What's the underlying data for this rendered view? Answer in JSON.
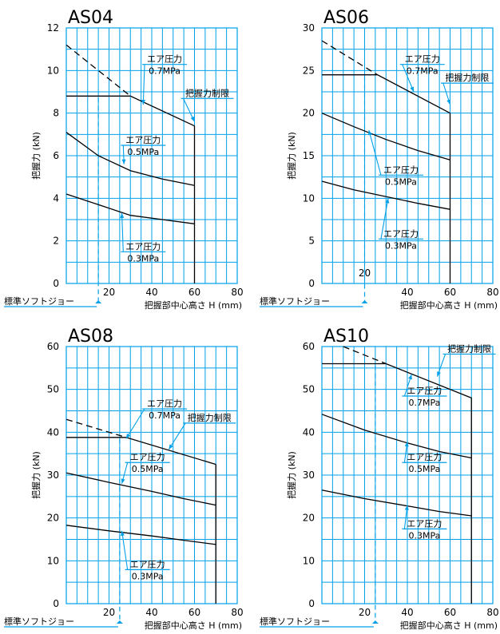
{
  "colors": {
    "grid": "#00a0e9",
    "curve": "#000000",
    "annotation": "#00a0e9",
    "background": "#ffffff"
  },
  "chart_data": [
    {
      "type": "line",
      "title": "AS04",
      "xlabel": "把握部中心高さ H (mm)",
      "ylabel": "把握力 (kN)",
      "xlim": [
        0,
        80
      ],
      "ylim": [
        0,
        12
      ],
      "x_ticks": [
        20,
        40,
        60,
        80
      ],
      "y_ticks": [
        0,
        2,
        4,
        6,
        8,
        10,
        12
      ],
      "grid": true,
      "x_grid_step": 5,
      "y_grid_step": 1,
      "series": [
        {
          "name": "エア圧力 0.7MPa",
          "points": [
            [
              0,
              8.8
            ],
            [
              30,
              8.8
            ],
            [
              60,
              7.4
            ]
          ],
          "style": "solid"
        },
        {
          "name": "",
          "points": [
            [
              0,
              11.2
            ],
            [
              30,
              8.8
            ]
          ],
          "style": "dashed"
        },
        {
          "name": "エア圧力 0.5MPa",
          "points": [
            [
              0,
              7.1
            ],
            [
              15,
              6.0
            ],
            [
              30,
              5.3
            ],
            [
              45,
              4.9
            ],
            [
              60,
              4.6
            ]
          ],
          "style": "solid"
        },
        {
          "name": "エア圧力 0.3MPa",
          "points": [
            [
              0,
              4.2
            ],
            [
              15,
              3.7
            ],
            [
              30,
              3.2
            ],
            [
              45,
              3.0
            ],
            [
              60,
              2.8
            ]
          ],
          "style": "solid"
        }
      ],
      "limit_line": {
        "x": 60,
        "y_top": 7.4
      },
      "soft_jaw_x": 15,
      "soft_jaw_label": "標準ソフトジョー",
      "labels": [
        {
          "line1": "エア圧力",
          "line2": "0.7MPa",
          "at": [
            46,
            10.4
          ],
          "arrow_to": [
            36,
            8.4
          ]
        },
        {
          "line1": "把握力制限",
          "line2": "",
          "at": [
            66,
            8.8
          ],
          "arrow_to": [
            60,
            7.6
          ]
        },
        {
          "line1": "エア圧力",
          "line2": "0.5MPa",
          "at": [
            36,
            6.6
          ],
          "arrow_to": [
            27,
            5.6
          ]
        },
        {
          "line1": "エア圧力",
          "line2": "0.3MPa",
          "at": [
            36,
            1.6
          ],
          "arrow_to": [
            26,
            3.3
          ]
        }
      ]
    },
    {
      "type": "line",
      "title": "AS06",
      "xlabel": "把握部中心高さ H (mm)",
      "ylabel": "把握力 (kN)",
      "xlim": [
        0,
        80
      ],
      "ylim": [
        0,
        30
      ],
      "x_ticks": [
        40,
        60,
        80
      ],
      "y_ticks": [
        0,
        5,
        10,
        15,
        20,
        25,
        30
      ],
      "x_extra_label": "20",
      "grid": true,
      "x_grid_step": 5,
      "y_grid_step": 2.5,
      "series": [
        {
          "name": "エア圧力 0.7MPa",
          "points": [
            [
              0,
              24.5
            ],
            [
              26,
              24.5
            ],
            [
              60,
              20.0
            ]
          ],
          "style": "solid"
        },
        {
          "name": "",
          "points": [
            [
              0,
              28.5
            ],
            [
              26,
              24.5
            ]
          ],
          "style": "dashed"
        },
        {
          "name": "エア圧力 0.5MPa",
          "points": [
            [
              0,
              20.0
            ],
            [
              15,
              18.4
            ],
            [
              30,
              16.9
            ],
            [
              45,
              15.6
            ],
            [
              60,
              14.5
            ]
          ],
          "style": "solid"
        },
        {
          "name": "エア圧力 0.3MPa",
          "points": [
            [
              0,
              12.0
            ],
            [
              15,
              11.0
            ],
            [
              30,
              10.2
            ],
            [
              45,
              9.4
            ],
            [
              60,
              8.7
            ]
          ],
          "style": "solid"
        }
      ],
      "limit_line": {
        "x": 60,
        "y_top": 20.0
      },
      "soft_jaw_x": 20,
      "soft_jaw_label": "標準ソフトジョー",
      "labels": [
        {
          "line1": "エア圧力",
          "line2": "0.7MPa",
          "at": [
            47,
            26.0
          ],
          "arrow_to": [
            43,
            22.5
          ]
        },
        {
          "line1": "把握力制限",
          "line2": "",
          "at": [
            68,
            23.8
          ],
          "arrow_to": [
            60,
            21.0
          ]
        },
        {
          "line1": "エア圧力",
          "line2": "0.5MPa",
          "at": [
            37,
            13.0
          ],
          "arrow_to": [
            22,
            18.0
          ]
        },
        {
          "line1": "エア圧力",
          "line2": "0.3MPa",
          "at": [
            37,
            5.5
          ],
          "arrow_to": [
            31,
            10.0
          ]
        }
      ]
    },
    {
      "type": "line",
      "title": "AS08",
      "xlabel": "把握部中心高さ H (mm)",
      "ylabel": "把握力 (kN)",
      "xlim": [
        0,
        80
      ],
      "ylim": [
        0,
        60
      ],
      "x_ticks": [
        20,
        40,
        60,
        80
      ],
      "y_ticks": [
        0,
        10,
        20,
        30,
        40,
        50,
        60
      ],
      "grid": true,
      "x_grid_step": 5,
      "y_grid_step": 5,
      "series": [
        {
          "name": "エア圧力 0.7MPa",
          "points": [
            [
              0,
              38.8
            ],
            [
              28,
              38.8
            ],
            [
              70,
              32.5
            ]
          ],
          "style": "solid"
        },
        {
          "name": "",
          "points": [
            [
              0,
              43.0
            ],
            [
              28,
              38.8
            ]
          ],
          "style": "dashed"
        },
        {
          "name": "エア圧力 0.5MPa",
          "points": [
            [
              0,
              30.5
            ],
            [
              20,
              28.3
            ],
            [
              40,
              26.2
            ],
            [
              55,
              24.5
            ],
            [
              70,
              23.0
            ]
          ],
          "style": "solid"
        },
        {
          "name": "エア圧力 0.3MPa",
          "points": [
            [
              0,
              18.3
            ],
            [
              20,
              17.0
            ],
            [
              40,
              15.8
            ],
            [
              55,
              14.8
            ],
            [
              70,
              13.8
            ]
          ],
          "style": "solid"
        }
      ],
      "limit_line": {
        "x": 70,
        "y_top": 32.5
      },
      "soft_jaw_x": 25,
      "soft_jaw_label": "標準ソフトジョー",
      "labels": [
        {
          "line1": "エア圧力",
          "line2": "0.7MPa",
          "at": [
            46,
            46.0
          ],
          "arrow_to": [
            28,
            38.5
          ]
        },
        {
          "line1": "把握力制限",
          "line2": "",
          "at": [
            67,
            42.7
          ],
          "arrow_to": [
            48,
            36.0
          ]
        },
        {
          "line1": "エア圧力",
          "line2": "0.5MPa",
          "at": [
            38,
            33.5
          ],
          "arrow_to": [
            26,
            28.0
          ]
        },
        {
          "line1": "エア圧力",
          "line2": "0.3MPa",
          "at": [
            38,
            8.5
          ],
          "arrow_to": [
            26,
            17.0
          ]
        }
      ]
    },
    {
      "type": "line",
      "title": "AS10",
      "xlabel": "把握部中心高さ H (mm)",
      "ylabel": "把握力 (kN)",
      "xlim": [
        0,
        80
      ],
      "ylim": [
        0,
        60
      ],
      "x_ticks": [
        20,
        40,
        60,
        80
      ],
      "y_ticks": [
        0,
        10,
        20,
        30,
        40,
        50,
        60
      ],
      "grid": true,
      "x_grid_step": 5,
      "y_grid_step": 5,
      "series": [
        {
          "name": "エア圧力 0.7MPa",
          "points": [
            [
              0,
              56.0
            ],
            [
              30,
              56.0
            ],
            [
              70,
              48.0
            ]
          ],
          "style": "solid"
        },
        {
          "name": "",
          "points": [
            [
              10,
              60.0
            ],
            [
              30,
              56.0
            ]
          ],
          "style": "dashed"
        },
        {
          "name": "エア圧力 0.5MPa",
          "points": [
            [
              0,
              44.2
            ],
            [
              20,
              40.5
            ],
            [
              40,
              37.5
            ],
            [
              55,
              35.5
            ],
            [
              70,
              34.0
            ]
          ],
          "style": "solid"
        },
        {
          "name": "エア圧力 0.3MPa",
          "points": [
            [
              0,
              26.5
            ],
            [
              20,
              24.5
            ],
            [
              40,
              22.8
            ],
            [
              55,
              21.5
            ],
            [
              70,
              20.5
            ]
          ],
          "style": "solid"
        }
      ],
      "limit_line": {
        "x": 70,
        "y_top": 48.0
      },
      "soft_jaw_x": 25,
      "soft_jaw_label": "標準ソフトジョー",
      "labels": [
        {
          "line1": "把握力制限",
          "line2": "",
          "at": [
            69,
            58.8
          ],
          "arrow_to": [
            54,
            53.0
          ]
        },
        {
          "line1": "エア圧力",
          "line2": "0.7MPa",
          "at": [
            48,
            49.0
          ],
          "arrow_to": [
            42,
            53.5
          ]
        },
        {
          "line1": "エア圧力",
          "line2": "0.5MPa",
          "at": [
            48,
            33.5
          ],
          "arrow_to": [
            40,
            37.8
          ]
        },
        {
          "line1": "エア圧力",
          "line2": "0.3MPa",
          "at": [
            48,
            18.0
          ],
          "arrow_to": [
            40,
            23.0
          ]
        }
      ]
    }
  ]
}
